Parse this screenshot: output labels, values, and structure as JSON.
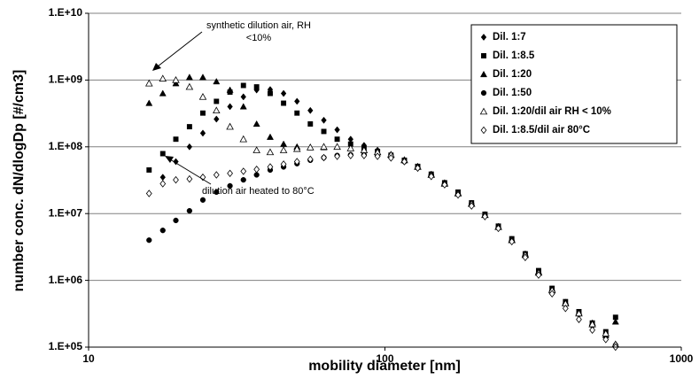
{
  "chart_data": {
    "type": "scatter",
    "x_label": "mobility diameter [nm]",
    "y_label": "number conc. dN/dlogDp [#/cm3]",
    "xscale": "log",
    "yscale": "log",
    "xlim": [
      10,
      1000
    ],
    "xticks": [
      10,
      100,
      1000
    ],
    "ylim": [
      100000,
      10000000000
    ],
    "yticks": [
      {
        "value": 100000,
        "label": "1.E+05"
      },
      {
        "value": 1000000,
        "label": "1.E+06"
      },
      {
        "value": 10000000,
        "label": "1.E+07"
      },
      {
        "value": 100000000,
        "label": "1.E+08"
      },
      {
        "value": 1000000000,
        "label": "1.E+09"
      },
      {
        "value": 10000000000,
        "label": "1.E+10"
      }
    ],
    "grid": true,
    "legend": "upper right",
    "annotations": [
      {
        "lines": [
          "synthetic dilution air, RH",
          "<10%"
        ]
      },
      {
        "lines": [
          "dilution air heated to 80°C"
        ]
      }
    ],
    "x": [
      16,
      17.8,
      19.7,
      21.9,
      24.3,
      27,
      30,
      33.3,
      36.9,
      41,
      45.5,
      50.5,
      56,
      62.2,
      69,
      76.6,
      85,
      94.4,
      104.8,
      116.3,
      129,
      143.3,
      159,
      176.5,
      196,
      217.5,
      241.4,
      268,
      297.5,
      330,
      366.4,
      406.7,
      451.4,
      501,
      556.2,
      600
    ],
    "series": [
      {
        "name": "Dil. 1:7",
        "color": "#000000",
        "marker": "diamond",
        "values": [
          20000000.0,
          35000000.0,
          60000000.0,
          100000000.0,
          160000000.0,
          260000000.0,
          400000000.0,
          560000000.0,
          710000000.0,
          720000000.0,
          630000000.0,
          480000000.0,
          350000000.0,
          250000000.0,
          180000000.0,
          130000000.0,
          105000000.0,
          89000000.0,
          76000000.0,
          63000000.0,
          50000000.0,
          38000000.0,
          28000000.0,
          20000000.0,
          14000000.0,
          9500000.0,
          6300000.0,
          4000000.0,
          2400000.0,
          1300000.0,
          710000.0,
          450000.0,
          320000.0,
          220000.0,
          160000.0,
          110000.0
        ]
      },
      {
        "name": "Dil. 1:8.5",
        "color": "#000000",
        "marker": "square",
        "values": [
          45000000.0,
          79000000.0,
          130000000.0,
          200000000.0,
          320000000.0,
          480000000.0,
          660000000.0,
          830000000.0,
          790000000.0,
          630000000.0,
          450000000.0,
          320000000.0,
          220000000.0,
          170000000.0,
          130000000.0,
          110000000.0,
          95000000.0,
          85000000.0,
          75000000.0,
          63000000.0,
          51000000.0,
          39000000.0,
          29000000.0,
          21000000.0,
          14500000.0,
          9800000.0,
          6500000.0,
          4200000.0,
          2500000.0,
          1400000.0,
          760000.0,
          480000.0,
          340000.0,
          230000.0,
          170000.0,
          280000.0
        ]
      },
      {
        "name": "Dil. 1:20",
        "color": "#000000",
        "marker": "triangle",
        "values": [
          450000000.0,
          630000000.0,
          890000000.0,
          1100000000.0,
          1100000000.0,
          950000000.0,
          710000000.0,
          400000000.0,
          220000000.0,
          140000000.0,
          110000000.0,
          100000000.0,
          98000000.0,
          98000000.0,
          100000000.0,
          95000000.0,
          89000000.0,
          83000000.0,
          77000000.0,
          64000000.0,
          51000000.0,
          39000000.0,
          29000000.0,
          20500000.0,
          14200000.0,
          9600000.0,
          6400000.0,
          4100000.0,
          2500000.0,
          1350000.0,
          740000.0,
          470000.0,
          330000.0,
          230000.0,
          150000.0,
          240000.0
        ]
      },
      {
        "name": "Dil. 1:50",
        "color": "#000000",
        "marker": "circle",
        "values": [
          4000000.0,
          5600000.0,
          7900000.0,
          11000000.0,
          16000000.0,
          21000000.0,
          26000000.0,
          32000000.0,
          38000000.0,
          45000000.0,
          50000000.0,
          56000000.0,
          63000000.0,
          69000000.0,
          74000000.0,
          76000000.0,
          76000000.0,
          74000000.0,
          70000000.0,
          60000000.0,
          49000000.0,
          38000000.0,
          28000000.0,
          20000000.0,
          14000000.0,
          9400000.0,
          6200000.0,
          3900000.0,
          2300000.0,
          1250000.0,
          690000.0,
          440000.0,
          310000.0,
          210000.0,
          150000.0,
          105000.0
        ]
      },
      {
        "name": "Dil. 1:20/dil air RH < 10%",
        "color": "#000000",
        "marker": "triangle-open",
        "values": [
          890000000.0,
          1050000000.0,
          1000000000.0,
          790000000.0,
          560000000.0,
          350000000.0,
          200000000.0,
          130000000.0,
          89000000.0,
          83000000.0,
          89000000.0,
          93000000.0,
          98000000.0,
          100000000.0,
          100000000.0,
          95000000.0,
          89000000.0,
          83000000.0,
          76000000.0,
          63000000.0,
          50000000.0,
          38000000.0,
          28000000.0,
          20000000.0,
          14000000.0,
          9500000.0,
          6300000.0,
          4000000.0,
          2400000.0,
          1300000.0,
          710000.0,
          450000.0,
          320000.0,
          220000.0,
          160000.0,
          110000.0
        ]
      },
      {
        "name": "Dil. 1:8.5/dil air 80°C",
        "color": "#000000",
        "marker": "diamond-open",
        "values": [
          20000000.0,
          28000000.0,
          32000000.0,
          33000000.0,
          35000000.0,
          38000000.0,
          40000000.0,
          43000000.0,
          46000000.0,
          50000000.0,
          55000000.0,
          60000000.0,
          65000000.0,
          69000000.0,
          72000000.0,
          74000000.0,
          74000000.0,
          72000000.0,
          68000000.0,
          60000000.0,
          48000000.0,
          36000000.0,
          27000000.0,
          19000000.0,
          13000000.0,
          9000000.0,
          6000000.0,
          3800000.0,
          2200000.0,
          1200000.0,
          630000.0,
          380000.0,
          260000.0,
          180000.0,
          130000.0,
          100000.0
        ]
      }
    ]
  }
}
